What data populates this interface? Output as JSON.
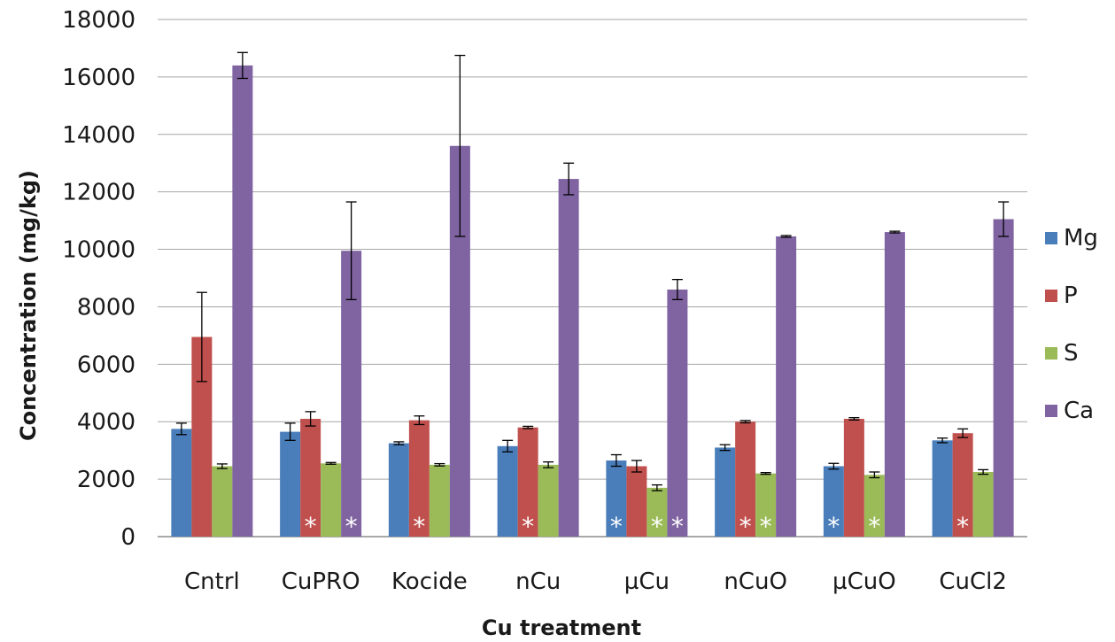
{
  "chart_data": {
    "type": "bar",
    "xlabel": "Cu treatment",
    "ylabel": "Concentration (mg/kg)",
    "ylim": [
      0,
      18000
    ],
    "yticks": [
      0,
      2000,
      4000,
      6000,
      8000,
      10000,
      12000,
      14000,
      16000,
      18000
    ],
    "grid": true,
    "legend_position": "right",
    "categories": [
      "Cntrl",
      "CuPRO",
      "Kocide",
      "nCu",
      "µCu",
      "nCuO",
      "µCuO",
      "CuCl2"
    ],
    "series": [
      {
        "name": "Mg",
        "color": "#4a7ebb",
        "values": [
          3750,
          3650,
          3250,
          3150,
          2650,
          3100,
          2450,
          3350
        ],
        "errors": [
          200,
          300,
          50,
          200,
          200,
          100,
          100,
          80
        ]
      },
      {
        "name": "P",
        "color": "#c0504d",
        "values": [
          6950,
          4100,
          4050,
          3800,
          2450,
          4000,
          4100,
          3600
        ],
        "errors": [
          1550,
          250,
          150,
          40,
          200,
          40,
          40,
          150
        ]
      },
      {
        "name": "S",
        "color": "#9bbb59",
        "values": [
          2450,
          2550,
          2500,
          2500,
          1700,
          2200,
          2150,
          2250
        ],
        "errors": [
          80,
          30,
          40,
          100,
          100,
          30,
          100,
          80
        ]
      },
      {
        "name": "Ca",
        "color": "#8064a2",
        "values": [
          16400,
          9950,
          13600,
          12450,
          8600,
          10450,
          10600,
          11050
        ],
        "errors": [
          450,
          1700,
          3150,
          550,
          350,
          30,
          30,
          600
        ]
      }
    ],
    "annotations": [
      {
        "category": "CuPRO",
        "series": "P",
        "text": "*"
      },
      {
        "category": "CuPRO",
        "series": "Ca",
        "text": "*"
      },
      {
        "category": "Kocide",
        "series": "P",
        "text": "*"
      },
      {
        "category": "nCu",
        "series": "P",
        "text": "*"
      },
      {
        "category": "µCu",
        "series": "Mg",
        "text": "*"
      },
      {
        "category": "µCu",
        "series": "S",
        "text": "*"
      },
      {
        "category": "µCu",
        "series": "Ca",
        "text": "*"
      },
      {
        "category": "nCuO",
        "series": "P",
        "text": "*"
      },
      {
        "category": "nCuO",
        "series": "S",
        "text": "*"
      },
      {
        "category": "µCuO",
        "series": "Mg",
        "text": "*"
      },
      {
        "category": "µCuO",
        "series": "S",
        "text": "*"
      },
      {
        "category": "CuCl2",
        "series": "P",
        "text": "*"
      }
    ]
  }
}
